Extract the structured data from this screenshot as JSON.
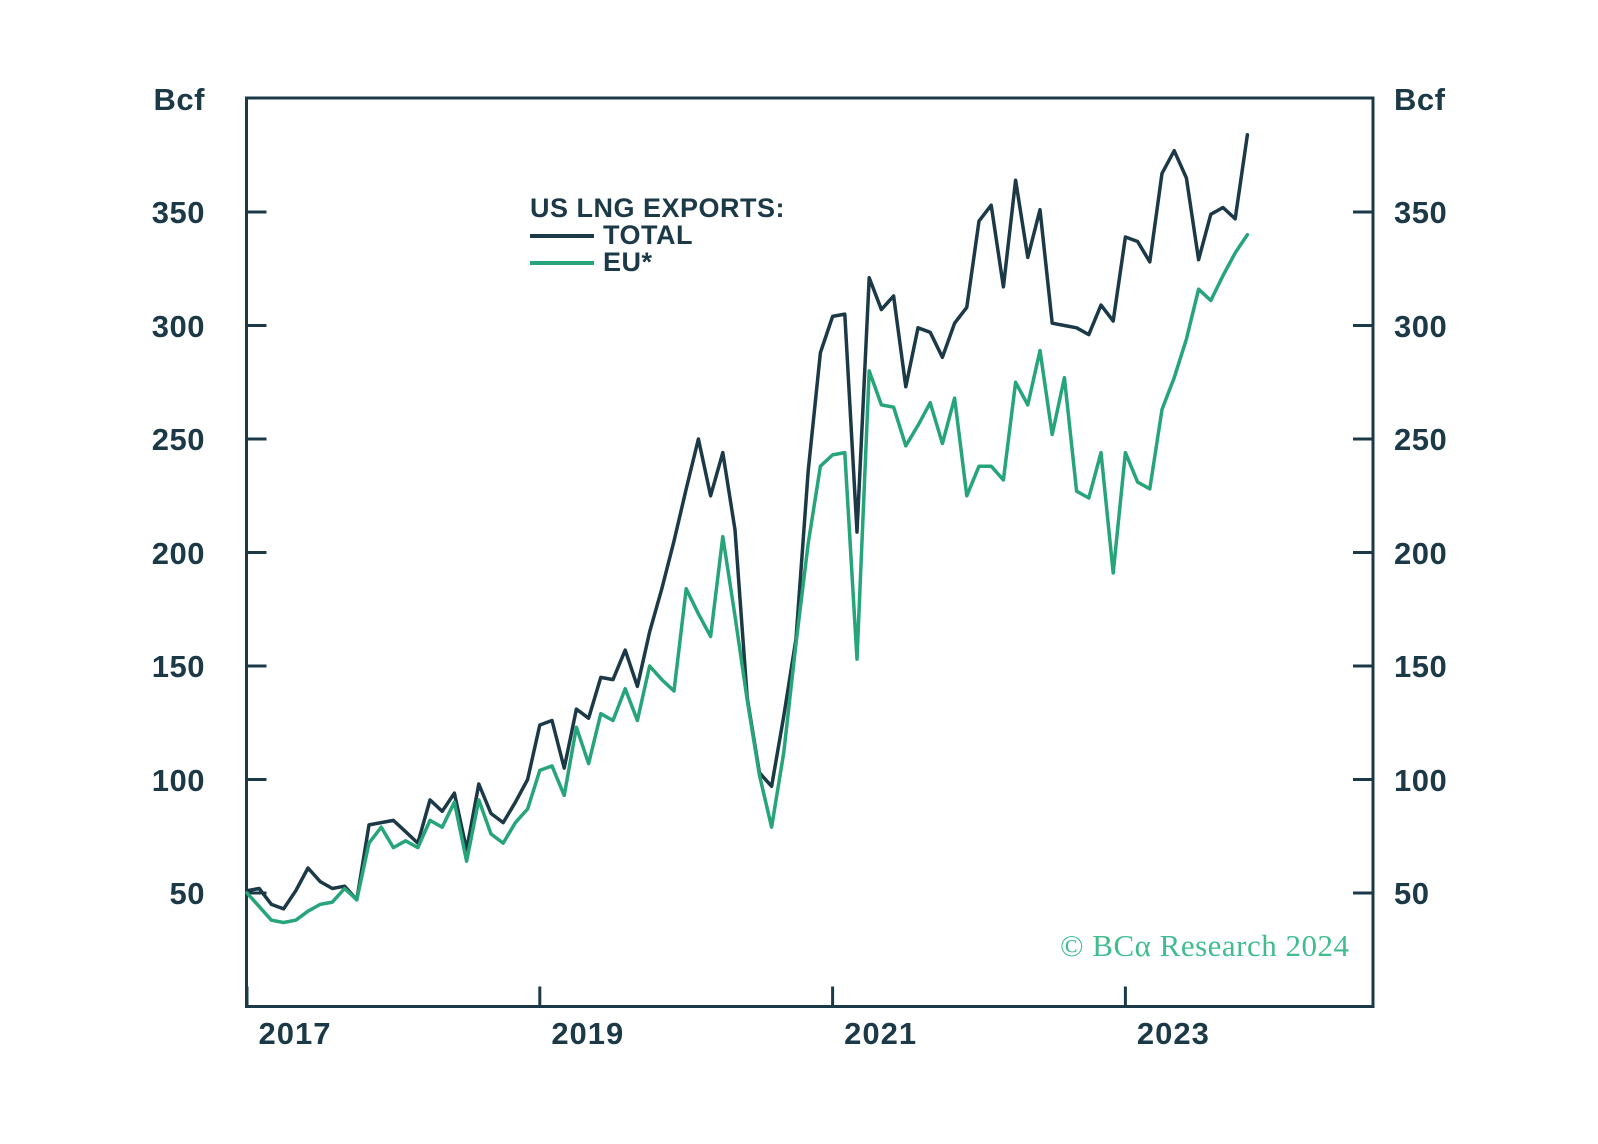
{
  "chart_data": {
    "type": "line",
    "title": "US LNG EXPORTS",
    "y_unit": "Bcf",
    "x_start": "2017-01",
    "x_end": "2023-11",
    "frequency": "monthly",
    "grid": false,
    "ylim": [
      0,
      400
    ],
    "y_ticks": [
      50,
      100,
      150,
      200,
      250,
      300,
      350
    ],
    "x_tick_years": [
      "2017",
      "2019",
      "2021",
      "2023"
    ],
    "axis_color": "#1c3947",
    "legend_title": "US LNG EXPORTS:",
    "legend_position": "top-center-inside",
    "series": [
      {
        "name": "TOTAL",
        "color": "#1c3947",
        "values": [
          51,
          52,
          45,
          43,
          51,
          61,
          55,
          52,
          53,
          47,
          80,
          81,
          82,
          77,
          72,
          91,
          86,
          94,
          69,
          98,
          85,
          81,
          90,
          100,
          124,
          126,
          105,
          131,
          127,
          145,
          144,
          157,
          141,
          165,
          184,
          205,
          228,
          250,
          225,
          244,
          210,
          136,
          103,
          97,
          128,
          162,
          236,
          288,
          304,
          305,
          209,
          321,
          307,
          313,
          273,
          299,
          297,
          286,
          301,
          308,
          346,
          353,
          317,
          364,
          330,
          351,
          301,
          300,
          299,
          296,
          309,
          302,
          339,
          337,
          328,
          367,
          377,
          365,
          329,
          349,
          352,
          347,
          384
        ]
      },
      {
        "name": "EU*",
        "color": "#26a578",
        "values": [
          50,
          44,
          38,
          37,
          38,
          42,
          45,
          46,
          52,
          47,
          72,
          79,
          70,
          73,
          70,
          82,
          79,
          90,
          64,
          91,
          76,
          72,
          81,
          87,
          104,
          106,
          93,
          123,
          107,
          129,
          126,
          140,
          126,
          150,
          144,
          139,
          184,
          173,
          163,
          207,
          172,
          135,
          102,
          79,
          112,
          160,
          204,
          238,
          243,
          244,
          153,
          280,
          265,
          264,
          247,
          256,
          266,
          248,
          268,
          225,
          238,
          238,
          232,
          275,
          265,
          289,
          252,
          277,
          227,
          224,
          244,
          191,
          244,
          231,
          228,
          263,
          277,
          294,
          316,
          311,
          322,
          332,
          340
        ]
      }
    ]
  },
  "footer": {
    "copyright": "© BCα Research 2024",
    "copyright_color": "#40bd8e"
  }
}
